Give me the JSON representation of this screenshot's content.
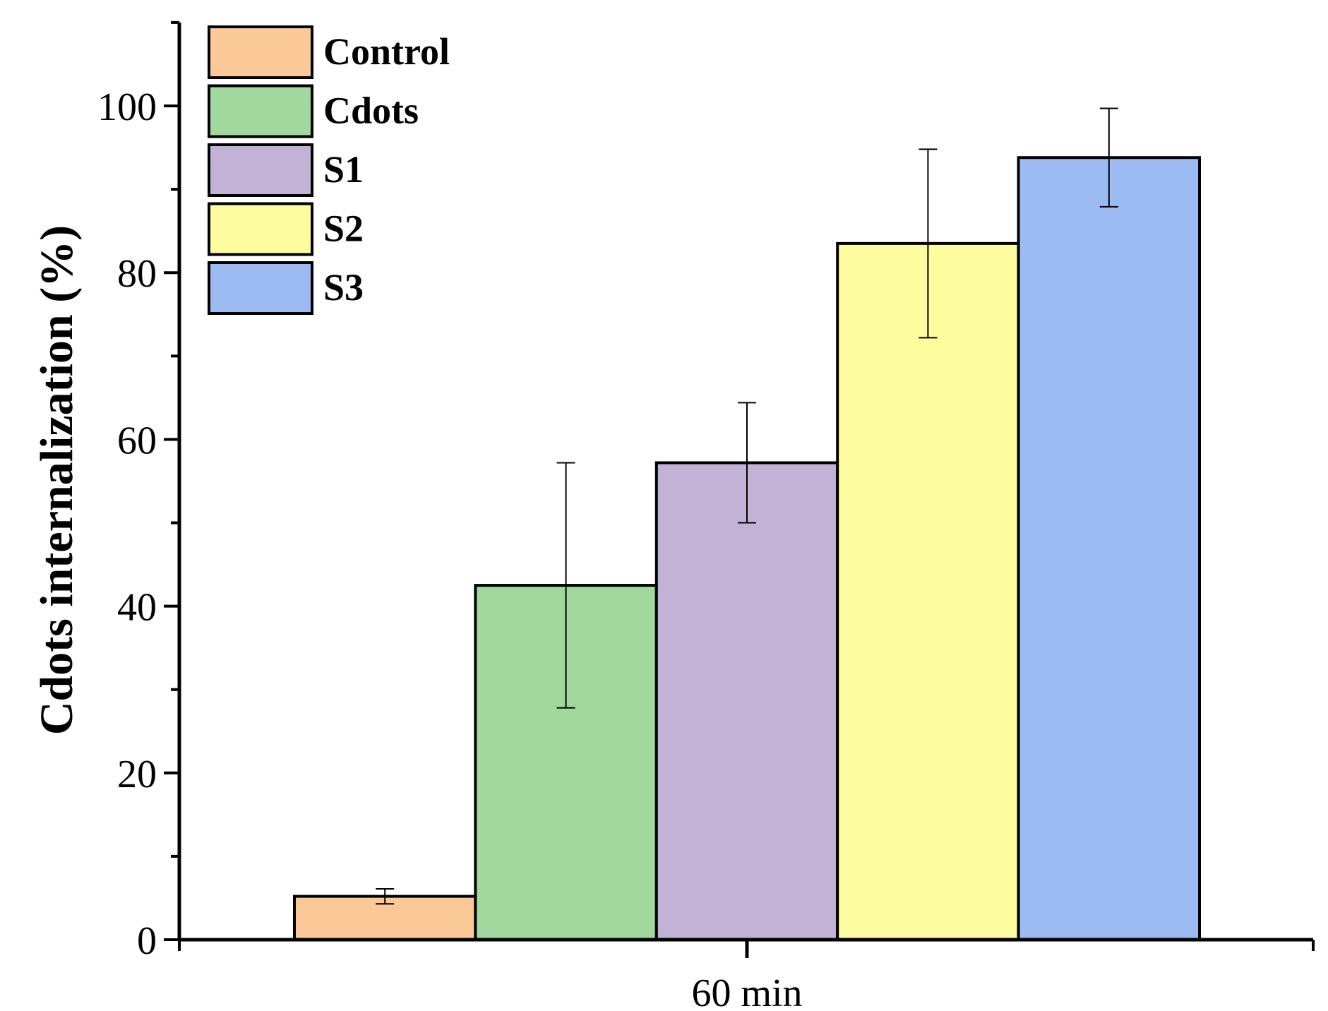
{
  "chart_data": {
    "type": "bar",
    "title": "",
    "xlabel": "",
    "ylabel": "Cdots internalization (%)",
    "categories": [
      "60 min"
    ],
    "ylim": [
      0,
      110
    ],
    "yticks": [
      0,
      20,
      40,
      60,
      80,
      100
    ],
    "grid": false,
    "legend_position": "top-left",
    "series": [
      {
        "name": "Control",
        "values": [
          5.2
        ],
        "error": [
          0.9
        ],
        "color": "#FBC898"
      },
      {
        "name": "Cdots",
        "values": [
          42.5
        ],
        "error": [
          14.7
        ],
        "color": "#A0D89E"
      },
      {
        "name": "S1",
        "values": [
          57.2
        ],
        "error": [
          7.2
        ],
        "color": "#C1B2D6"
      },
      {
        "name": "S2",
        "values": [
          83.5
        ],
        "error": [
          11.3
        ],
        "color": "#FDFD9F"
      },
      {
        "name": "S3",
        "values": [
          93.8
        ],
        "error": [
          5.9
        ],
        "color": "#9DBBF3"
      }
    ]
  }
}
